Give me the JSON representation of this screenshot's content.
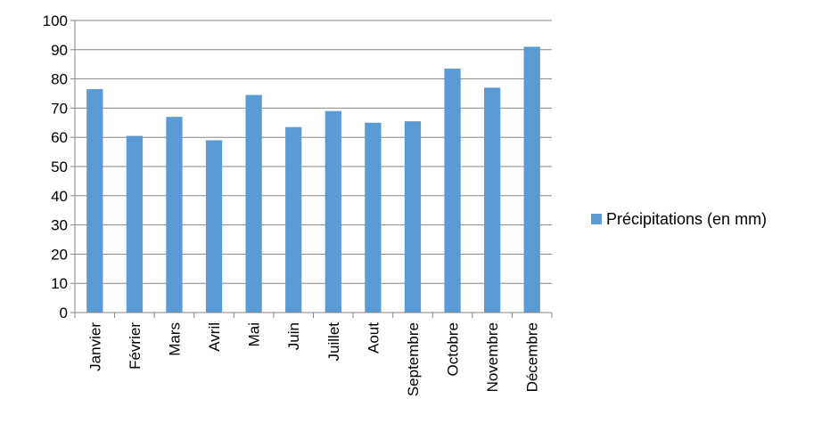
{
  "chart_data": {
    "type": "bar",
    "categories": [
      "Janvier",
      "Février",
      "Mars",
      "Avril",
      "Mai",
      "Juin",
      "Juillet",
      "Aout",
      "Septembre",
      "Octobre",
      "Novembre",
      "Décembre"
    ],
    "series": [
      {
        "name": "Précipitations (en mm)",
        "values": [
          76.5,
          60.5,
          67,
          59,
          74.5,
          63.5,
          69,
          65,
          65.5,
          83.5,
          77,
          91
        ],
        "color": "#5b9bd5"
      }
    ],
    "y_ticks": [
      "0",
      "10",
      "20",
      "30",
      "40",
      "50",
      "60",
      "70",
      "80",
      "90",
      "100"
    ],
    "ylim": [
      0,
      100
    ],
    "grid": true,
    "legend_position": "right",
    "x_label_orientation": "vertical"
  }
}
